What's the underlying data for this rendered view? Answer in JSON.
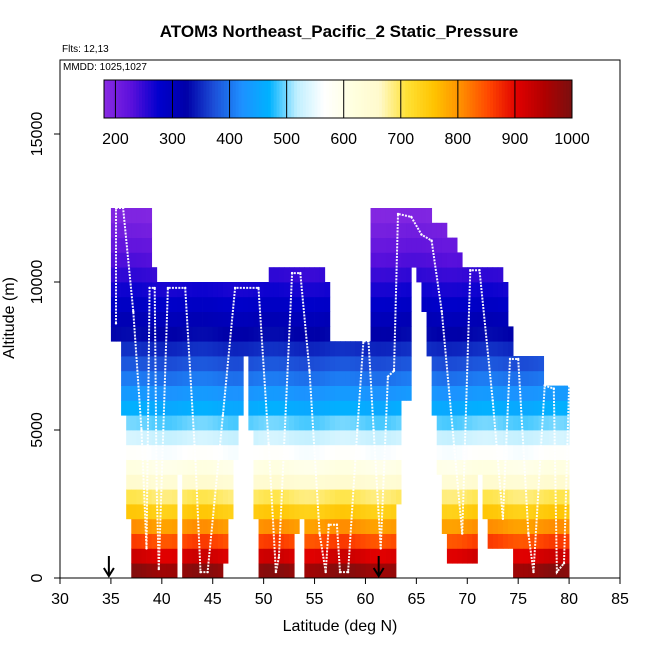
{
  "chart_data": {
    "type": "heatmap",
    "title": "ATOM3 Northeast_Pacific_2 Static_Pressure",
    "flights_label": "Flts: 12,13",
    "date_label": "MMDD: 1025,1027",
    "xlabel": "Latitude (deg N)",
    "ylabel": "Altitude (m)",
    "xlim": [
      30,
      85
    ],
    "ylim": [
      0,
      17500
    ],
    "xticks": [
      "30",
      "35",
      "40",
      "45",
      "50",
      "55",
      "60",
      "65",
      "70",
      "75",
      "80",
      "85"
    ],
    "yticks": [
      "0",
      "5000",
      "10000",
      "15000"
    ],
    "colorbar": {
      "range": [
        180,
        1000
      ],
      "ticks": [
        "200",
        "300",
        "400",
        "500",
        "600",
        "700",
        "800",
        "900",
        "1000"
      ],
      "colors": [
        "#8a2be2",
        "#5a10dc",
        "#0000cd",
        "#0000a8",
        "#1c4fd8",
        "#1e90ff",
        "#00b2ff",
        "#bfefff",
        "#ffffff",
        "#ffffe0",
        "#fffacd",
        "#ffe135",
        "#ffc300",
        "#ff8c00",
        "#ff4500",
        "#e00000",
        "#b00000",
        "#7a1010"
      ]
    },
    "arrows_at_latitude": [
      34.8,
      61.3
    ],
    "profile_points": [
      [
        35.5,
        8600
      ],
      [
        35.5,
        12500
      ],
      [
        36.2,
        12500
      ],
      [
        37.2,
        9000
      ],
      [
        38.0,
        5000
      ],
      [
        38.5,
        1000
      ],
      [
        38.8,
        9800
      ],
      [
        39.3,
        9800
      ],
      [
        39.5,
        3000
      ],
      [
        39.7,
        300
      ],
      [
        40.6,
        9800
      ],
      [
        42.3,
        9800
      ],
      [
        43.3,
        4000
      ],
      [
        43.8,
        200
      ],
      [
        44.5,
        200
      ],
      [
        46.0,
        5500
      ],
      [
        47.2,
        9800
      ],
      [
        49.5,
        9800
      ],
      [
        50.5,
        4500
      ],
      [
        51.2,
        200
      ],
      [
        51.5,
        700
      ],
      [
        52.8,
        10300
      ],
      [
        53.6,
        10300
      ],
      [
        54.5,
        7000
      ],
      [
        55.5,
        1500
      ],
      [
        56.1,
        200
      ],
      [
        56.4,
        1800
      ],
      [
        57.2,
        1800
      ],
      [
        57.5,
        200
      ],
      [
        58.3,
        200
      ],
      [
        59.2,
        5000
      ],
      [
        59.8,
        8000
      ],
      [
        60.3,
        8000
      ],
      [
        60.8,
        5000
      ],
      [
        61.5,
        1000
      ],
      [
        62.2,
        6800
      ],
      [
        62.8,
        7000
      ],
      [
        63.2,
        12300
      ],
      [
        64.5,
        12200
      ],
      [
        65.5,
        11600
      ],
      [
        66.5,
        11400
      ],
      [
        67.5,
        9000
      ],
      [
        69.5,
        1500
      ],
      [
        70.3,
        10400
      ],
      [
        71.2,
        10400
      ],
      [
        72.5,
        6000
      ],
      [
        73.5,
        2000
      ],
      [
        74.2,
        7400
      ],
      [
        75.0,
        7400
      ],
      [
        76.0,
        1500
      ],
      [
        76.5,
        200
      ],
      [
        77.6,
        6500
      ],
      [
        78.5,
        6400
      ],
      [
        78.8,
        200
      ],
      [
        79.5,
        500
      ],
      [
        80.0,
        6500
      ]
    ]
  }
}
